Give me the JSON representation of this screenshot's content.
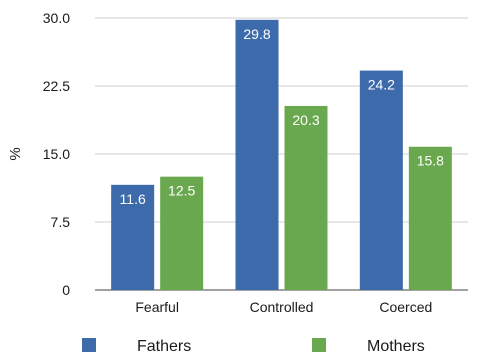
{
  "chart_data": {
    "type": "bar",
    "categories": [
      "Fearful",
      "Controlled",
      "Coerced"
    ],
    "series": [
      {
        "name": "Fathers",
        "values": [
          11.6,
          29.8,
          24.2
        ],
        "color": "#3d6aab"
      },
      {
        "name": "Mothers",
        "values": [
          12.5,
          20.3,
          15.8
        ],
        "color": "#6aa84f"
      }
    ],
    "data_labels": [
      [
        "11.6",
        "29.8",
        "24.2"
      ],
      [
        "12.5",
        "20.3",
        "15.8"
      ]
    ],
    "ylabel": "%",
    "ylim": [
      0,
      30
    ],
    "yticks": [
      0,
      7.5,
      15,
      22.5,
      30
    ],
    "ytick_labels": [
      "0",
      "7.5",
      "15.0",
      "22.5",
      "30.0"
    ],
    "grid": true,
    "legend": "bottom"
  }
}
